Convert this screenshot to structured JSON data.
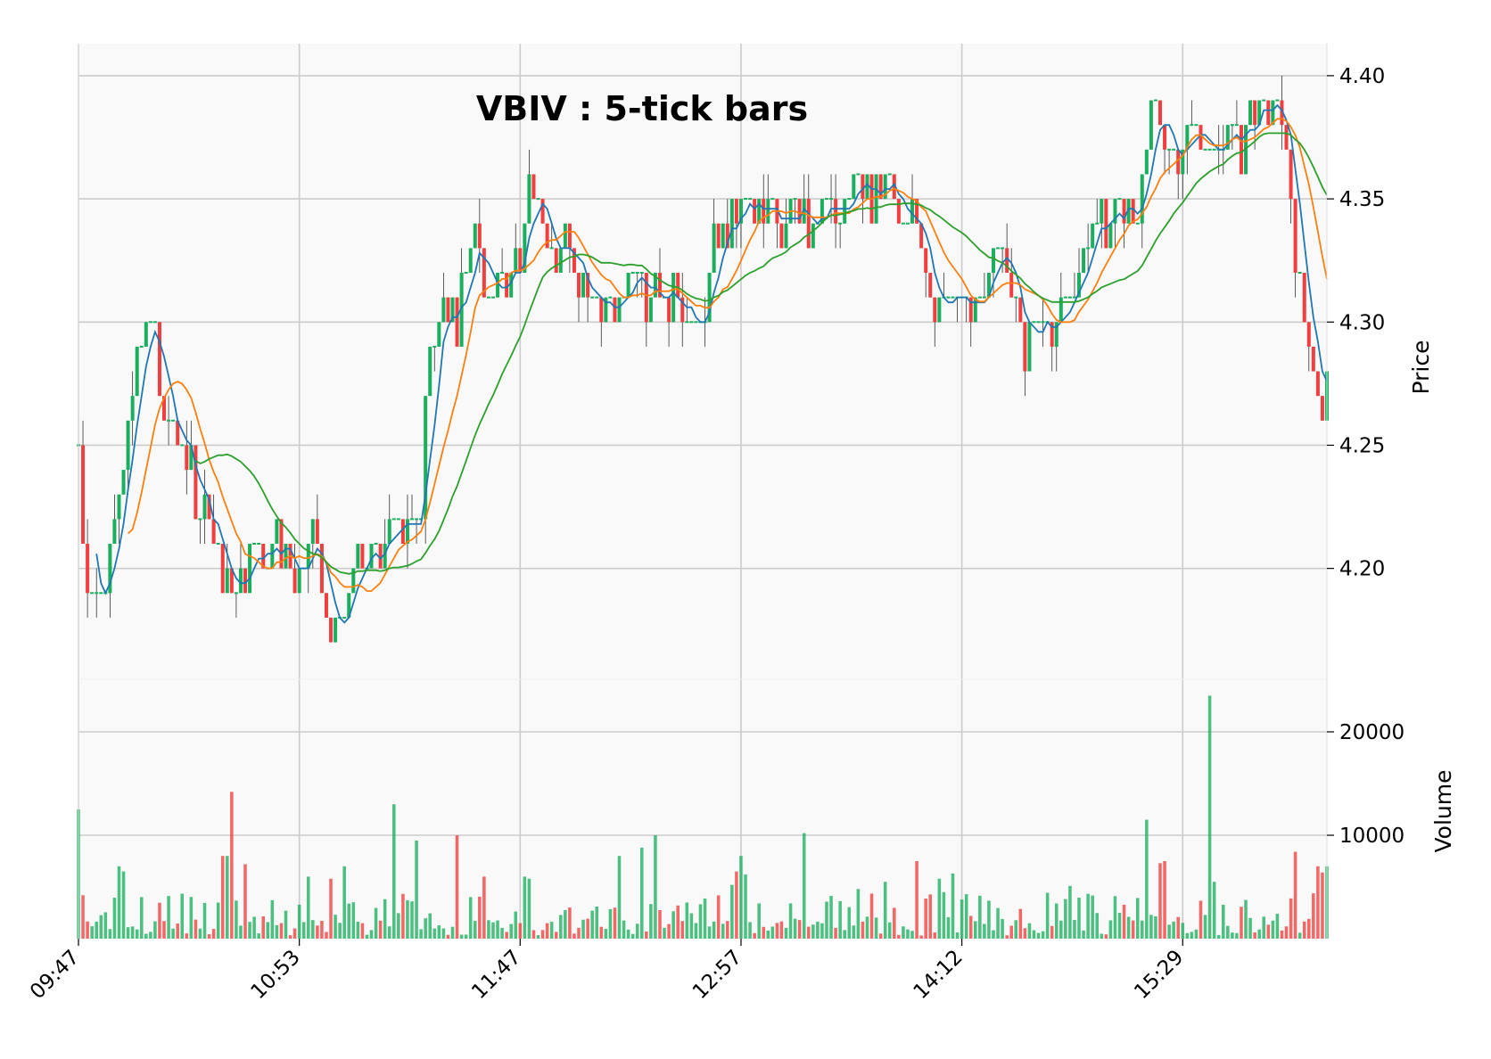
{
  "chart_data": {
    "type": "ohlc",
    "title": "VBIV : 5-tick bars",
    "colors": {
      "up": "#1aaf5d",
      "down": "#f23e3e",
      "mav1": "#1f77b4",
      "mav2": "#ff7f0e",
      "mav3": "#2ca02c",
      "panel_bg": "#f9f9f9",
      "grid": "#cccccc"
    },
    "price_panel": {
      "ylabel": "Price",
      "ylim": [
        4.155,
        4.413
      ],
      "ticks": [
        "4.20",
        "4.25",
        "4.30",
        "4.35",
        "4.40"
      ]
    },
    "volume_panel": {
      "ylabel": "Volume",
      "ylim": [
        0,
        25000
      ],
      "ticks": [
        "10000",
        "20000"
      ]
    },
    "x_ticks": [
      {
        "index": 0,
        "label": "09:47"
      },
      {
        "index": 49,
        "label": "10:53"
      },
      {
        "index": 98,
        "label": "11:47"
      },
      {
        "index": 147,
        "label": "12:57"
      },
      {
        "index": 196,
        "label": "14:12"
      },
      {
        "index": 245,
        "label": "15:29"
      }
    ],
    "price_anchors": [
      [
        0,
        4.24
      ],
      [
        2,
        4.19
      ],
      [
        4,
        4.18
      ],
      [
        6,
        4.19
      ],
      [
        8,
        4.22
      ],
      [
        10,
        4.25
      ],
      [
        12,
        4.27
      ],
      [
        14,
        4.29
      ],
      [
        16,
        4.3
      ],
      [
        18,
        4.27
      ],
      [
        20,
        4.26
      ],
      [
        22,
        4.25
      ],
      [
        24,
        4.24
      ],
      [
        26,
        4.23
      ],
      [
        28,
        4.22
      ],
      [
        30,
        4.21
      ],
      [
        32,
        4.2
      ],
      [
        34,
        4.19
      ],
      [
        36,
        4.19
      ],
      [
        38,
        4.2
      ],
      [
        40,
        4.21
      ],
      [
        43,
        4.21
      ],
      [
        46,
        4.2
      ],
      [
        48,
        4.19
      ],
      [
        50,
        4.2
      ],
      [
        52,
        4.22
      ],
      [
        54,
        4.19
      ],
      [
        56,
        4.17
      ],
      [
        58,
        4.18
      ],
      [
        60,
        4.19
      ],
      [
        62,
        4.2
      ],
      [
        64,
        4.21
      ],
      [
        66,
        4.2
      ],
      [
        68,
        4.21
      ],
      [
        70,
        4.22
      ],
      [
        72,
        4.21
      ],
      [
        74,
        4.22
      ],
      [
        76,
        4.23
      ],
      [
        78,
        4.28
      ],
      [
        80,
        4.3
      ],
      [
        82,
        4.31
      ],
      [
        84,
        4.3
      ],
      [
        86,
        4.32
      ],
      [
        88,
        4.33
      ],
      [
        90,
        4.31
      ],
      [
        92,
        4.32
      ],
      [
        94,
        4.31
      ],
      [
        96,
        4.32
      ],
      [
        98,
        4.33
      ],
      [
        100,
        4.35
      ],
      [
        102,
        4.34
      ],
      [
        104,
        4.33
      ],
      [
        106,
        4.32
      ],
      [
        108,
        4.33
      ],
      [
        110,
        4.32
      ],
      [
        112,
        4.32
      ],
      [
        114,
        4.31
      ],
      [
        116,
        4.3
      ],
      [
        118,
        4.31
      ],
      [
        120,
        4.31
      ],
      [
        122,
        4.32
      ],
      [
        124,
        4.32
      ],
      [
        126,
        4.31
      ],
      [
        128,
        4.32
      ],
      [
        130,
        4.31
      ],
      [
        132,
        4.31
      ],
      [
        134,
        4.3
      ],
      [
        136,
        4.3
      ],
      [
        138,
        4.3
      ],
      [
        140,
        4.32
      ],
      [
        142,
        4.34
      ],
      [
        144,
        4.33
      ],
      [
        146,
        4.34
      ],
      [
        148,
        4.35
      ],
      [
        150,
        4.34
      ],
      [
        152,
        4.34
      ],
      [
        154,
        4.35
      ],
      [
        156,
        4.34
      ],
      [
        158,
        4.35
      ],
      [
        160,
        4.35
      ],
      [
        162,
        4.34
      ],
      [
        164,
        4.34
      ],
      [
        166,
        4.35
      ],
      [
        168,
        4.34
      ],
      [
        170,
        4.35
      ],
      [
        172,
        4.35
      ],
      [
        174,
        4.36
      ],
      [
        176,
        4.35
      ],
      [
        178,
        4.35
      ],
      [
        180,
        4.36
      ],
      [
        182,
        4.35
      ],
      [
        184,
        4.35
      ],
      [
        186,
        4.34
      ],
      [
        188,
        4.32
      ],
      [
        190,
        4.3
      ],
      [
        192,
        4.31
      ],
      [
        194,
        4.32
      ],
      [
        196,
        4.31
      ],
      [
        198,
        4.3
      ],
      [
        200,
        4.31
      ],
      [
        202,
        4.32
      ],
      [
        204,
        4.33
      ],
      [
        206,
        4.32
      ],
      [
        208,
        4.31
      ],
      [
        210,
        4.29
      ],
      [
        212,
        4.3
      ],
      [
        214,
        4.3
      ],
      [
        216,
        4.3
      ],
      [
        218,
        4.3
      ],
      [
        220,
        4.31
      ],
      [
        222,
        4.32
      ],
      [
        224,
        4.33
      ],
      [
        226,
        4.34
      ],
      [
        228,
        4.33
      ],
      [
        230,
        4.34
      ],
      [
        232,
        4.34
      ],
      [
        234,
        4.34
      ],
      [
        236,
        4.36
      ],
      [
        238,
        4.39
      ],
      [
        240,
        4.38
      ],
      [
        242,
        4.37
      ],
      [
        244,
        4.37
      ],
      [
        246,
        4.37
      ],
      [
        248,
        4.38
      ],
      [
        250,
        4.37
      ],
      [
        252,
        4.37
      ],
      [
        254,
        4.37
      ],
      [
        256,
        4.38
      ],
      [
        258,
        4.37
      ],
      [
        260,
        4.38
      ],
      [
        262,
        4.39
      ],
      [
        264,
        4.38
      ],
      [
        266,
        4.38
      ],
      [
        268,
        4.37
      ],
      [
        270,
        4.32
      ],
      [
        272,
        4.3
      ],
      [
        274,
        4.28
      ],
      [
        276,
        4.26
      ],
      [
        277,
        4.28
      ]
    ],
    "volume_spikes": [
      [
        0,
        12500
      ],
      [
        1,
        4200
      ],
      [
        9,
        7000
      ],
      [
        10,
        6500
      ],
      [
        32,
        8000
      ],
      [
        33,
        8000
      ],
      [
        34,
        14200
      ],
      [
        37,
        7200
      ],
      [
        51,
        6000
      ],
      [
        56,
        5800
      ],
      [
        59,
        7000
      ],
      [
        70,
        13000
      ],
      [
        75,
        9500
      ],
      [
        84,
        10000
      ],
      [
        90,
        6000
      ],
      [
        99,
        6000
      ],
      [
        100,
        5800
      ],
      [
        120,
        8000
      ],
      [
        125,
        8800
      ],
      [
        128,
        10000
      ],
      [
        145,
        5200
      ],
      [
        146,
        6500
      ],
      [
        147,
        8000
      ],
      [
        148,
        6200
      ],
      [
        161,
        10200
      ],
      [
        173,
        4800
      ],
      [
        179,
        5500
      ],
      [
        186,
        7500
      ],
      [
        191,
        5800
      ],
      [
        194,
        6300
      ],
      [
        197,
        4300
      ],
      [
        220,
        5100
      ],
      [
        237,
        11500
      ],
      [
        240,
        7300
      ],
      [
        241,
        7500
      ],
      [
        251,
        23500
      ],
      [
        252,
        5500
      ],
      [
        270,
        8400
      ],
      [
        275,
        7000
      ],
      [
        276,
        6400
      ],
      [
        277,
        7000
      ]
    ]
  }
}
